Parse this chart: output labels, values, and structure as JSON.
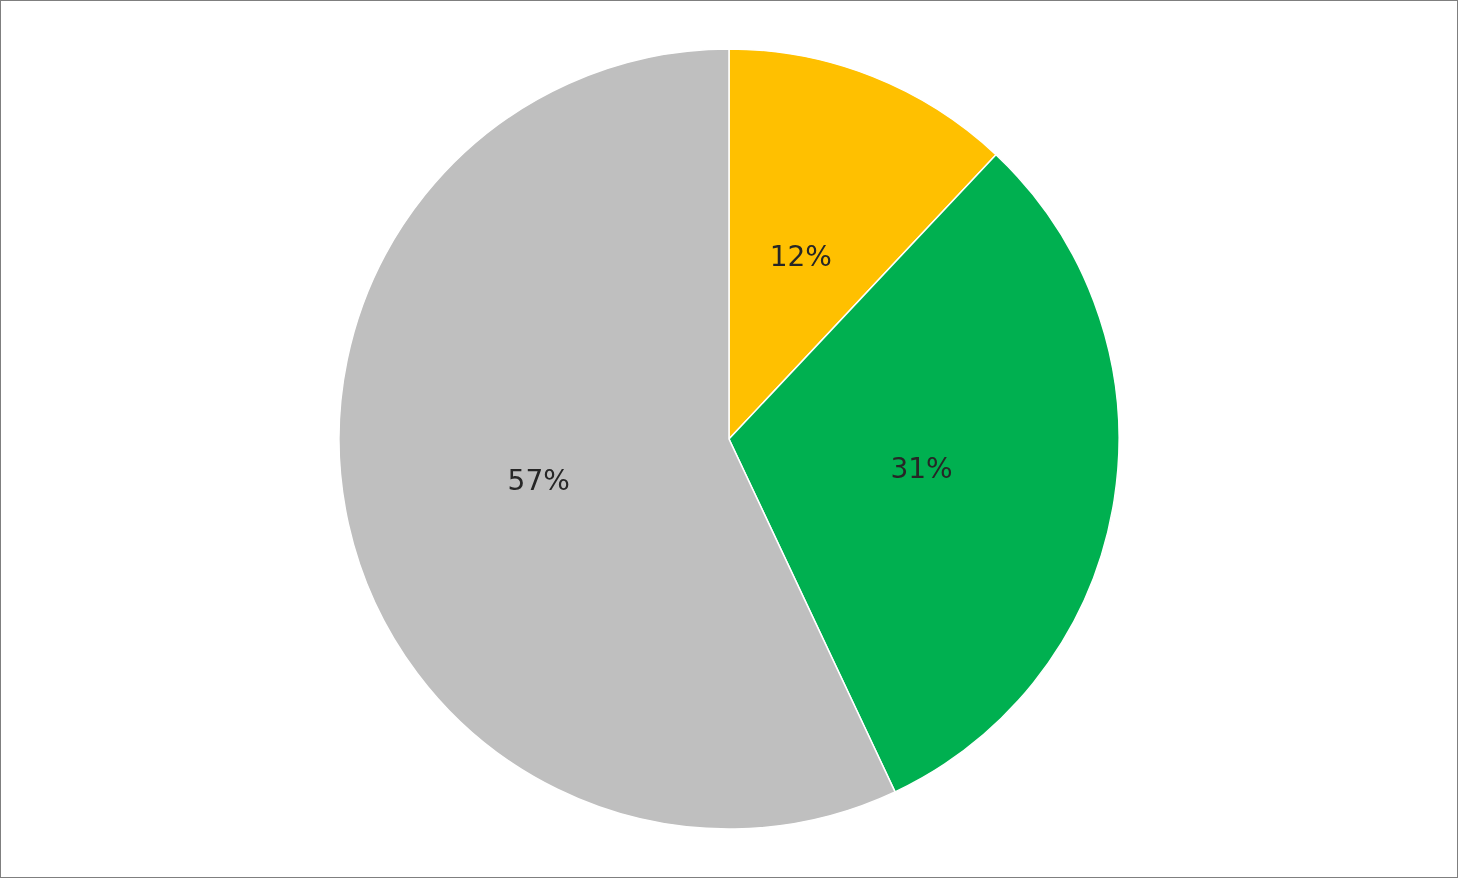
{
  "chart_data": {
    "type": "pie",
    "categories": [
      null,
      null,
      null
    ],
    "values": [
      12,
      31,
      57
    ],
    "colors": [
      "#ffc000",
      "#00b050",
      "#bfbfbf"
    ],
    "value_labels": [
      "12%",
      "31%",
      "57%"
    ]
  }
}
